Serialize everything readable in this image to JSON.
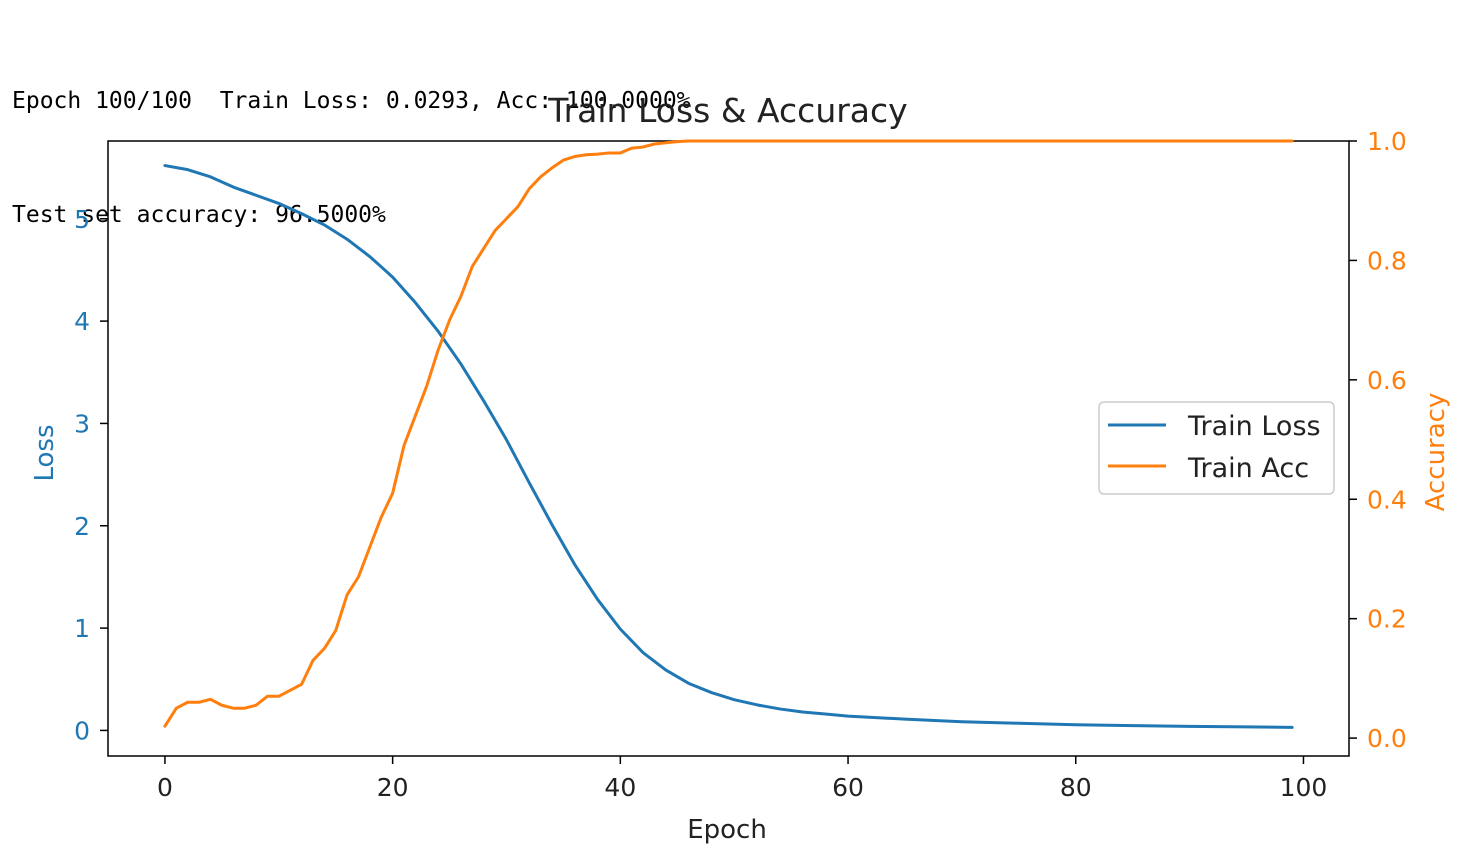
{
  "output": {
    "lines": [
      "Epoch 100/100  Train Loss: 0.0293, Acc: 100.0000%",
      "Test set accuracy: 96.5000%"
    ]
  },
  "chart_data": {
    "type": "line",
    "title": "Train Loss & Accuracy",
    "xlabel": "Epoch",
    "ylabel_left": "Loss",
    "ylabel_right": "Accuracy",
    "xlim": [
      -5,
      104
    ],
    "ylim_left": [
      -0.25,
      5.76
    ],
    "ylim_right": [
      -0.03,
      1.0
    ],
    "x_ticks": [
      0,
      20,
      40,
      60,
      80,
      100
    ],
    "y_ticks_left": [
      0,
      1,
      2,
      3,
      4,
      5
    ],
    "y_ticks_right": [
      0.0,
      0.2,
      0.4,
      0.6,
      0.8,
      1.0
    ],
    "y_tick_labels_right": [
      "0.0",
      "0.2",
      "0.4",
      "0.6",
      "0.8",
      "1.0"
    ],
    "grid": false,
    "legend_position": "center-right",
    "colors": {
      "loss": "#1f77b4",
      "acc": "#ff7f0e",
      "left_axis_text": "#1f77b4",
      "right_axis_text": "#ff7f0e"
    },
    "series": [
      {
        "name": "Train Loss",
        "axis": "left",
        "x": [
          0,
          2,
          4,
          6,
          8,
          10,
          12,
          14,
          16,
          18,
          20,
          22,
          24,
          26,
          28,
          30,
          32,
          34,
          36,
          38,
          40,
          42,
          44,
          46,
          48,
          50,
          52,
          54,
          56,
          58,
          60,
          65,
          70,
          75,
          80,
          85,
          90,
          95,
          99
        ],
        "y": [
          5.52,
          5.48,
          5.41,
          5.31,
          5.23,
          5.15,
          5.05,
          4.94,
          4.8,
          4.63,
          4.43,
          4.18,
          3.9,
          3.58,
          3.22,
          2.84,
          2.42,
          2.01,
          1.62,
          1.28,
          0.99,
          0.76,
          0.59,
          0.46,
          0.37,
          0.3,
          0.25,
          0.21,
          0.18,
          0.16,
          0.14,
          0.11,
          0.085,
          0.07,
          0.055,
          0.047,
          0.04,
          0.035,
          0.0293
        ]
      },
      {
        "name": "Train Acc",
        "axis": "right",
        "x": [
          0,
          1,
          2,
          3,
          4,
          5,
          6,
          7,
          8,
          9,
          10,
          11,
          12,
          13,
          14,
          15,
          16,
          17,
          18,
          19,
          20,
          21,
          22,
          23,
          24,
          25,
          26,
          27,
          28,
          29,
          30,
          31,
          32,
          33,
          34,
          35,
          36,
          37,
          38,
          39,
          40,
          41,
          42,
          43,
          44,
          45,
          46,
          47,
          48,
          50,
          60,
          70,
          80,
          90,
          99
        ],
        "y": [
          0.02,
          0.05,
          0.06,
          0.06,
          0.065,
          0.055,
          0.05,
          0.05,
          0.055,
          0.07,
          0.07,
          0.08,
          0.09,
          0.13,
          0.15,
          0.18,
          0.24,
          0.27,
          0.32,
          0.37,
          0.41,
          0.49,
          0.54,
          0.59,
          0.65,
          0.7,
          0.74,
          0.79,
          0.82,
          0.85,
          0.87,
          0.89,
          0.92,
          0.94,
          0.955,
          0.968,
          0.974,
          0.977,
          0.978,
          0.98,
          0.98,
          0.988,
          0.99,
          0.995,
          0.997,
          0.999,
          1.0,
          1.0,
          1.0,
          1.0,
          1.0,
          1.0,
          1.0,
          1.0,
          1.0
        ]
      }
    ]
  }
}
